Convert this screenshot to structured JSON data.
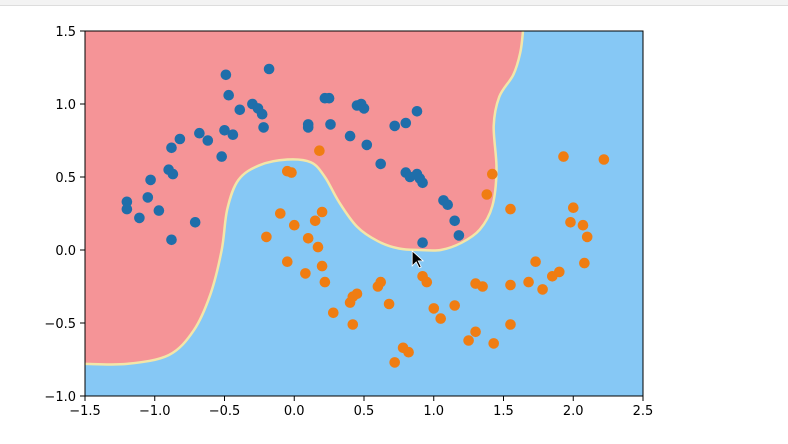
{
  "chart_data": {
    "type": "scatter",
    "title": "",
    "xlabel": "",
    "ylabel": "",
    "xlim": [
      -1.5,
      2.5
    ],
    "ylim": [
      -1.0,
      1.5
    ],
    "grid": false,
    "x_ticks": [
      "−1.5",
      "−1.0",
      "−0.5",
      "0.0",
      "0.5",
      "1.0",
      "1.5",
      "2.0",
      "2.5"
    ],
    "y_ticks": [
      "−1.0",
      "−0.5",
      "0.0",
      "0.5",
      "1.0",
      "1.5"
    ],
    "x_tick_values": [
      -1.5,
      -1.0,
      -0.5,
      0.0,
      0.5,
      1.0,
      1.5,
      2.0,
      2.5
    ],
    "y_tick_values": [
      -1.0,
      -0.5,
      0.0,
      0.5,
      1.0,
      1.5
    ],
    "colors": {
      "region_0": "#f59497",
      "region_1": "#86c8f5",
      "class_0": "#1f6eaa",
      "class_1": "#f07d12",
      "boundary": "#f3e6a8"
    },
    "decision_boundary": [
      [
        -1.5,
        -0.78
      ],
      [
        -1.2,
        -0.78
      ],
      [
        -0.9,
        -0.72
      ],
      [
        -0.72,
        -0.55
      ],
      [
        -0.6,
        -0.3
      ],
      [
        -0.52,
        0.0
      ],
      [
        -0.48,
        0.28
      ],
      [
        -0.4,
        0.48
      ],
      [
        -0.25,
        0.58
      ],
      [
        -0.05,
        0.62
      ],
      [
        0.12,
        0.6
      ],
      [
        0.22,
        0.5
      ],
      [
        0.32,
        0.33
      ],
      [
        0.45,
        0.16
      ],
      [
        0.6,
        0.06
      ],
      [
        0.75,
        0.01
      ],
      [
        0.9,
        0.0
      ],
      [
        1.05,
        0.0
      ],
      [
        1.2,
        0.05
      ],
      [
        1.33,
        0.14
      ],
      [
        1.42,
        0.3
      ],
      [
        1.45,
        0.55
      ],
      [
        1.43,
        0.85
      ],
      [
        1.47,
        1.05
      ],
      [
        1.57,
        1.2
      ],
      [
        1.62,
        1.35
      ],
      [
        1.64,
        1.5
      ]
    ],
    "series": [
      {
        "label": "0",
        "points": [
          [
            -1.2,
            0.33
          ],
          [
            -1.2,
            0.28
          ],
          [
            -1.11,
            0.22
          ],
          [
            -1.05,
            0.36
          ],
          [
            -1.03,
            0.48
          ],
          [
            -0.97,
            0.27
          ],
          [
            -0.9,
            0.55
          ],
          [
            -0.87,
            0.52
          ],
          [
            -0.88,
            0.7
          ],
          [
            -0.82,
            0.76
          ],
          [
            -0.88,
            0.07
          ],
          [
            -0.71,
            0.19
          ],
          [
            -0.68,
            0.8
          ],
          [
            -0.62,
            0.75
          ],
          [
            -0.52,
            0.64
          ],
          [
            -0.5,
            0.82
          ],
          [
            -0.49,
            1.2
          ],
          [
            -0.47,
            1.06
          ],
          [
            -0.44,
            0.79
          ],
          [
            -0.39,
            0.96
          ],
          [
            -0.3,
            1.0
          ],
          [
            -0.26,
            0.97
          ],
          [
            -0.23,
            0.93
          ],
          [
            -0.22,
            0.84
          ],
          [
            -0.18,
            1.24
          ],
          [
            0.1,
            0.86
          ],
          [
            0.1,
            0.84
          ],
          [
            0.22,
            1.04
          ],
          [
            0.25,
            1.04
          ],
          [
            0.26,
            0.86
          ],
          [
            0.4,
            0.78
          ],
          [
            0.45,
            0.99
          ],
          [
            0.48,
            1.0
          ],
          [
            0.5,
            0.97
          ],
          [
            0.52,
            0.72
          ],
          [
            0.62,
            0.59
          ],
          [
            0.72,
            0.85
          ],
          [
            0.8,
            0.87
          ],
          [
            0.8,
            0.53
          ],
          [
            0.83,
            0.5
          ],
          [
            0.88,
            0.95
          ],
          [
            0.88,
            0.52
          ],
          [
            0.9,
            0.49
          ],
          [
            0.92,
            0.46
          ],
          [
            1.07,
            0.34
          ],
          [
            1.1,
            0.31
          ],
          [
            1.15,
            0.2
          ],
          [
            1.18,
            0.1
          ],
          [
            0.92,
            0.05
          ]
        ]
      },
      {
        "label": "1",
        "points": [
          [
            0.18,
            0.68
          ],
          [
            -0.05,
            0.54
          ],
          [
            -0.02,
            0.53
          ],
          [
            -0.1,
            0.25
          ],
          [
            -0.2,
            0.09
          ],
          [
            0.0,
            0.17
          ],
          [
            0.15,
            0.2
          ],
          [
            0.2,
            0.26
          ],
          [
            0.1,
            0.08
          ],
          [
            0.17,
            0.02
          ],
          [
            -0.05,
            -0.08
          ],
          [
            0.08,
            -0.16
          ],
          [
            0.2,
            -0.11
          ],
          [
            0.22,
            -0.22
          ],
          [
            0.28,
            -0.43
          ],
          [
            0.4,
            -0.36
          ],
          [
            0.42,
            -0.32
          ],
          [
            0.45,
            -0.3
          ],
          [
            0.42,
            -0.51
          ],
          [
            0.6,
            -0.25
          ],
          [
            0.62,
            -0.22
          ],
          [
            0.72,
            -0.77
          ],
          [
            0.78,
            -0.67
          ],
          [
            0.82,
            -0.7
          ],
          [
            0.92,
            -0.18
          ],
          [
            0.95,
            -0.22
          ],
          [
            1.05,
            -0.47
          ],
          [
            1.15,
            -0.38
          ],
          [
            1.25,
            -0.62
          ],
          [
            1.3,
            -0.56
          ],
          [
            1.43,
            -0.64
          ],
          [
            1.3,
            -0.23
          ],
          [
            1.35,
            -0.25
          ],
          [
            1.38,
            0.38
          ],
          [
            1.42,
            0.52
          ],
          [
            1.55,
            0.28
          ],
          [
            1.55,
            -0.51
          ],
          [
            1.55,
            -0.24
          ],
          [
            1.68,
            -0.22
          ],
          [
            1.73,
            -0.08
          ],
          [
            1.78,
            -0.27
          ],
          [
            1.85,
            -0.18
          ],
          [
            1.9,
            -0.15
          ],
          [
            1.93,
            0.64
          ],
          [
            1.98,
            0.19
          ],
          [
            2.0,
            0.29
          ],
          [
            2.07,
            0.17
          ],
          [
            2.08,
            -0.09
          ],
          [
            2.1,
            0.09
          ],
          [
            2.22,
            0.62
          ],
          [
            0.68,
            -0.37
          ],
          [
            1.0,
            -0.4
          ]
        ]
      }
    ]
  }
}
